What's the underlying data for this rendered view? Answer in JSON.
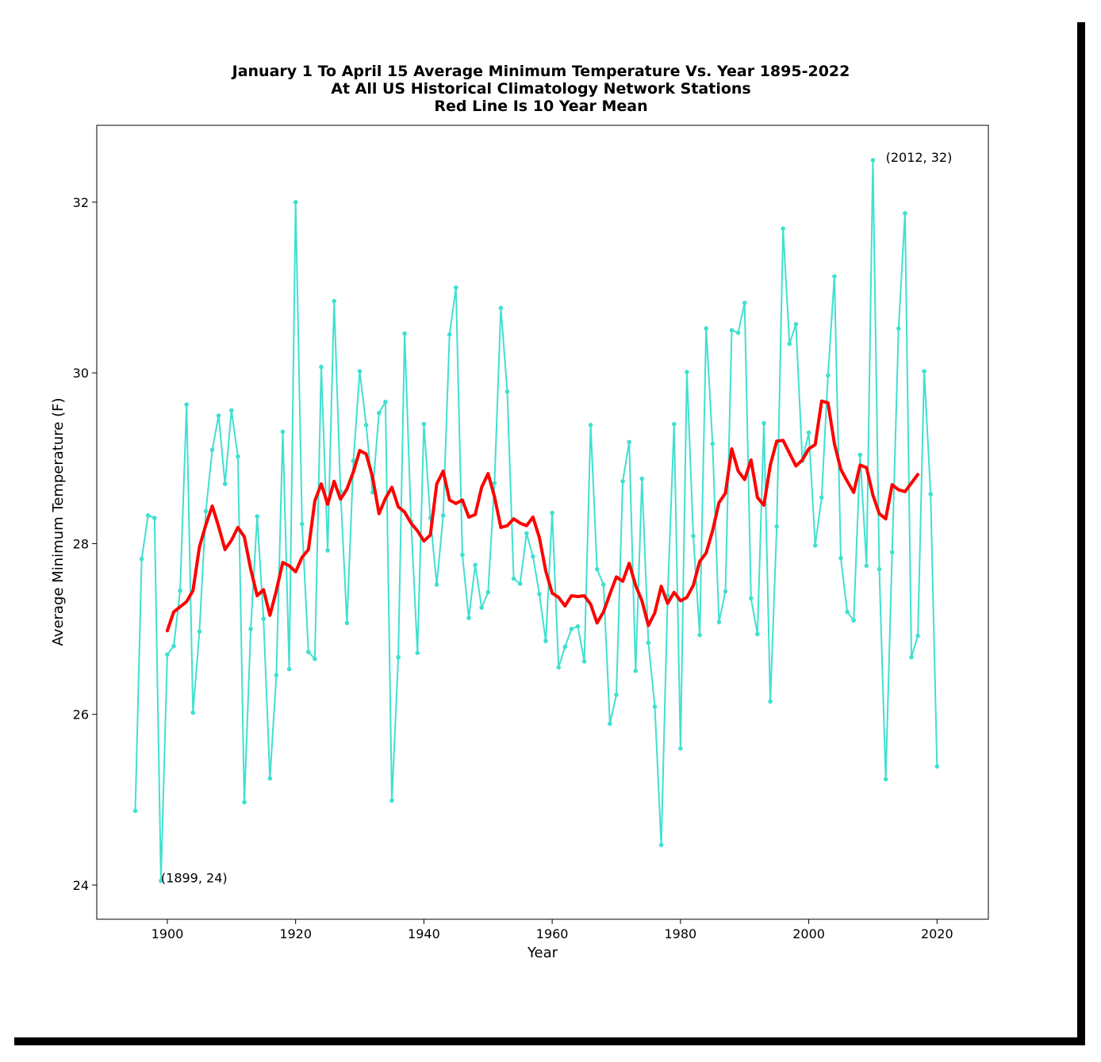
{
  "chart_data": {
    "type": "line",
    "title_lines": [
      "January 1 To April 15 Average Minimum Temperature Vs. Year 1895-2022",
      "At All US Historical Climatology Network Stations",
      "Red Line Is 10 Year Mean"
    ],
    "xlabel": "Year",
    "ylabel": "Average Minimum Temperature (F)",
    "xlim": [
      1889,
      2028
    ],
    "ylim": [
      23.6,
      32.9
    ],
    "xticks": [
      1900,
      1920,
      1940,
      1960,
      1980,
      2000,
      2020
    ],
    "yticks": [
      24,
      26,
      28,
      30,
      32
    ],
    "grid": false,
    "colors": {
      "annual": "#40e0d0",
      "mean": "#ff0000"
    },
    "series": [
      {
        "start_year": 1895,
        "values": [
          24.87,
          27.82,
          28.33,
          28.3,
          24.05,
          26.7,
          26.8,
          27.45,
          29.63,
          26.02,
          26.97,
          28.38,
          29.1,
          29.5,
          28.7,
          29.56,
          29.02,
          24.97,
          27.0,
          28.32,
          27.12,
          25.25,
          26.46,
          29.31,
          26.53,
          32.0,
          28.23,
          26.73,
          26.65,
          30.07,
          27.92,
          30.84,
          28.61,
          27.07,
          28.97,
          30.02,
          29.39,
          28.6,
          29.53,
          29.66,
          24.99,
          26.67,
          30.46,
          28.26,
          26.72,
          29.4,
          28.3,
          27.52,
          28.33,
          30.45,
          31.0,
          27.87,
          27.13,
          27.75,
          27.25,
          27.43,
          28.71,
          30.76,
          29.78,
          27.59,
          27.53,
          28.12,
          27.85,
          27.41,
          26.86,
          28.36,
          26.55,
          26.79,
          27.0,
          27.03,
          26.62,
          29.39,
          27.7,
          27.52,
          25.89,
          26.23,
          28.73,
          29.19,
          26.51,
          28.76,
          26.84,
          26.09,
          24.47,
          27.39,
          29.4,
          25.6,
          30.01,
          28.09,
          26.93,
          30.52,
          29.17,
          27.08,
          27.44,
          30.5,
          30.47,
          30.82,
          27.36,
          26.94,
          29.41,
          26.15,
          28.2,
          31.69,
          30.34,
          30.57,
          28.97,
          29.3,
          27.98,
          28.54,
          29.97,
          31.13,
          27.83,
          27.2,
          27.1,
          29.04,
          27.74,
          32.49,
          27.7,
          25.24,
          27.9,
          30.52,
          31.87,
          26.67,
          26.92,
          30.02,
          28.58,
          25.39
        ]
      },
      {
        "name": "10 Year Mean",
        "start_year": 1900,
        "values": [
          26.98,
          27.2,
          27.26,
          27.32,
          27.45,
          27.96,
          28.22,
          28.44,
          28.2,
          27.93,
          28.04,
          28.19,
          28.08,
          27.7,
          27.39,
          27.46,
          27.16,
          27.45,
          27.78,
          27.74,
          27.67,
          27.84,
          27.93,
          28.5,
          28.7,
          28.46,
          28.73,
          28.52,
          28.64,
          28.84,
          29.09,
          29.05,
          28.78,
          28.35,
          28.53,
          28.66,
          28.43,
          28.37,
          28.24,
          28.15,
          28.03,
          28.1,
          28.7,
          28.85,
          28.51,
          28.47,
          28.51,
          28.31,
          28.34,
          28.66,
          28.82,
          28.55,
          28.19,
          28.21,
          28.29,
          28.24,
          28.21,
          28.31,
          28.07,
          27.68,
          27.42,
          27.37,
          27.27,
          27.39,
          27.38,
          27.39,
          27.29,
          27.07,
          27.2,
          27.41,
          27.61,
          27.56,
          27.77,
          27.51,
          27.33,
          27.04,
          27.19,
          27.5,
          27.3,
          27.43,
          27.33,
          27.37,
          27.51,
          27.79,
          27.89,
          28.15,
          28.48,
          28.59,
          29.11,
          28.85,
          28.75,
          28.98,
          28.54,
          28.45,
          28.92,
          29.2,
          29.21,
          29.06,
          28.91,
          28.98,
          29.11,
          29.16,
          29.67,
          29.65,
          29.17,
          28.87,
          28.73,
          28.6,
          28.92,
          28.89,
          28.57,
          28.35,
          28.29,
          28.69,
          28.63,
          28.61,
          28.71,
          28.81
        ]
      }
    ],
    "annotations": [
      {
        "text": "(1899, 24)",
        "x": 1899,
        "y": 24.05
      },
      {
        "text": "(2012, 32)",
        "x": 2012,
        "y": 32.49
      }
    ]
  }
}
